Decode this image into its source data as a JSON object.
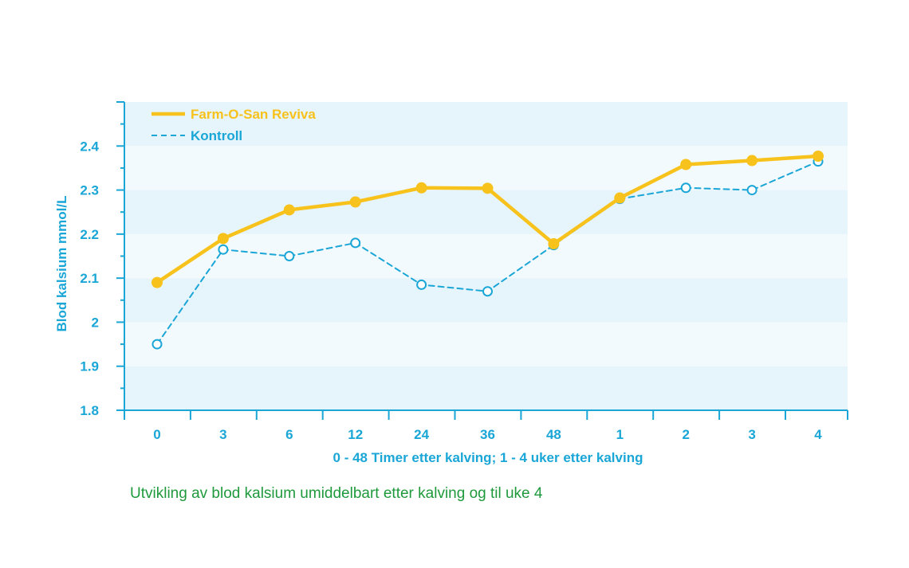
{
  "chart_data": {
    "type": "line",
    "title": "",
    "xlabel": "0 - 48 Timer etter kalving; 1 - 4 uker etter kalving",
    "ylabel": "Blod kalsium mmol/L",
    "categories": [
      "0",
      "3",
      "6",
      "12",
      "24",
      "36",
      "48",
      "1",
      "2",
      "3",
      "4"
    ],
    "ylim": [
      1.8,
      2.5
    ],
    "yticks": [
      "1.8",
      "1.9",
      "2",
      "2.1",
      "2.2",
      "2.3",
      "2.4"
    ],
    "series": [
      {
        "name": "Farm-O-San Reviva",
        "color": "#f7c21b",
        "style": "solid",
        "marker": "filled-circle",
        "values": [
          2.09,
          2.19,
          2.255,
          2.273,
          2.305,
          2.304,
          2.178,
          2.282,
          2.358,
          2.367,
          2.377
        ]
      },
      {
        "name": "Kontroll",
        "color": "#1aa6d6",
        "style": "dashed",
        "marker": "open-circle",
        "values": [
          1.95,
          2.165,
          2.15,
          2.18,
          2.085,
          2.07,
          2.175,
          2.28,
          2.305,
          2.3,
          2.365
        ]
      }
    ],
    "legend_position": "top-left",
    "band_colors": [
      "#e6f4fb",
      "#f3fafd"
    ]
  },
  "caption": "Utvikling av blod kalsium umiddelbart etter kalving og til uke 4"
}
